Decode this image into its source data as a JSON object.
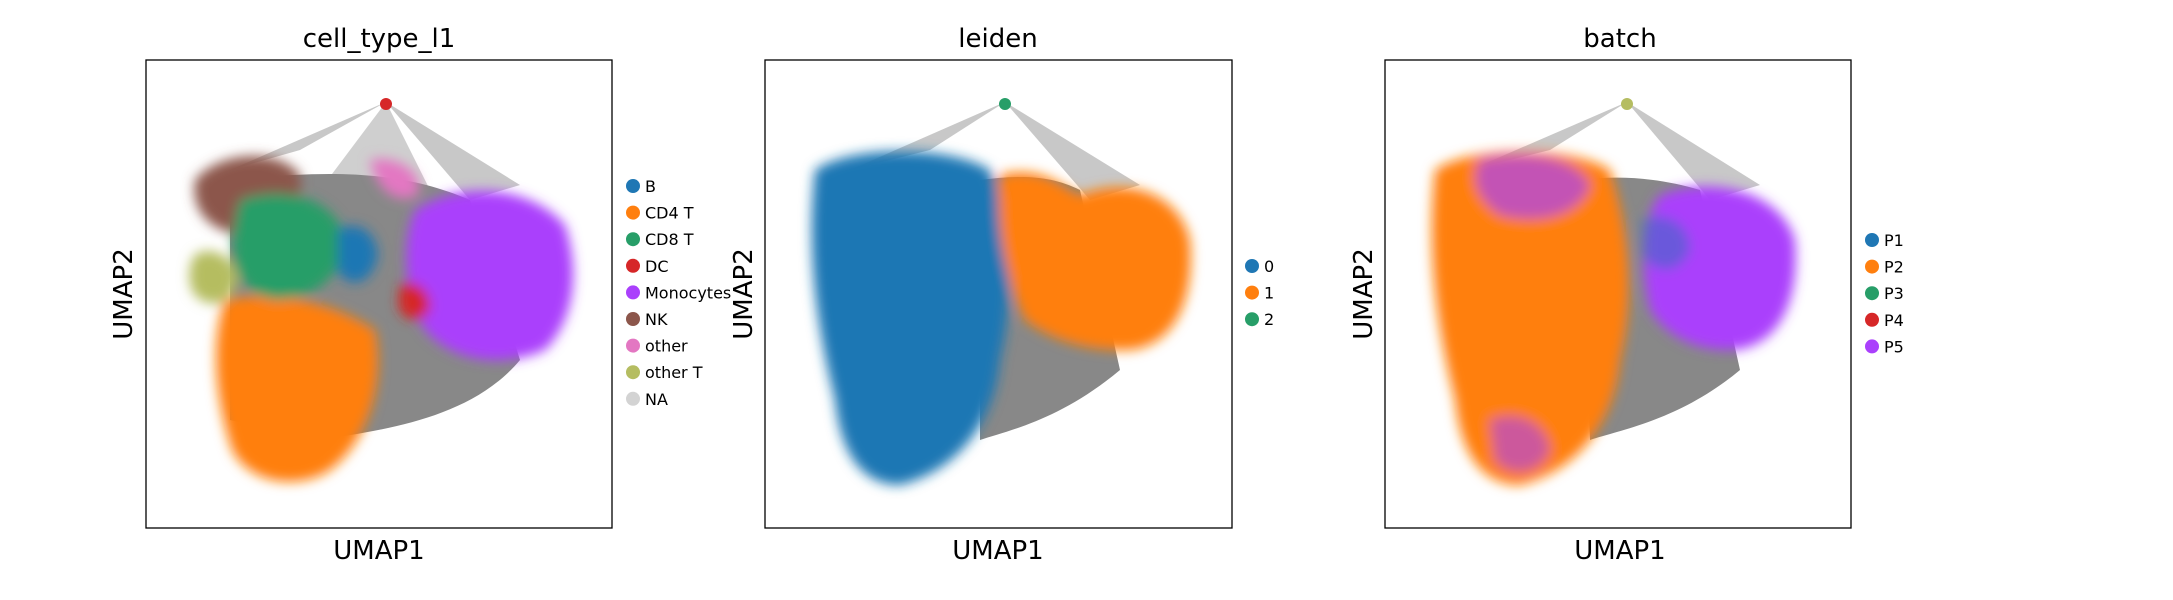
{
  "chart_data": [
    {
      "type": "scatter",
      "title": "cell_type_l1",
      "xlabel": "UMAP1",
      "ylabel": "UMAP2",
      "grid": false,
      "legend_position": "right",
      "legend": [
        {
          "label": "B",
          "color": "#1f77b4"
        },
        {
          "label": "CD4 T",
          "color": "#ff7f0e"
        },
        {
          "label": "CD8 T",
          "color": "#279e68"
        },
        {
          "label": "DC",
          "color": "#d62728"
        },
        {
          "label": "Monocytes",
          "color": "#aa40fc"
        },
        {
          "label": "NK",
          "color": "#8c564b"
        },
        {
          "label": "other",
          "color": "#e377c2"
        },
        {
          "label": "other T",
          "color": "#b5bd61"
        },
        {
          "label": "NA",
          "color": "#d3d3d3"
        }
      ]
    },
    {
      "type": "scatter",
      "title": "leiden",
      "xlabel": "UMAP1",
      "ylabel": "UMAP2",
      "grid": false,
      "legend_position": "right",
      "legend": [
        {
          "label": "0",
          "color": "#1f77b4"
        },
        {
          "label": "1",
          "color": "#ff7f0e"
        },
        {
          "label": "2",
          "color": "#279e68"
        }
      ]
    },
    {
      "type": "scatter",
      "title": "batch",
      "xlabel": "UMAP1",
      "ylabel": "UMAP2",
      "grid": false,
      "legend_position": "right",
      "legend": [
        {
          "label": "P1",
          "color": "#1f77b4"
        },
        {
          "label": "P2",
          "color": "#ff7f0e"
        },
        {
          "label": "P3",
          "color": "#279e68"
        },
        {
          "label": "P4",
          "color": "#d62728"
        },
        {
          "label": "P5",
          "color": "#aa40fc"
        }
      ]
    }
  ],
  "colors": {
    "edge_gray": "#808080",
    "axes_frame": "#000000"
  }
}
